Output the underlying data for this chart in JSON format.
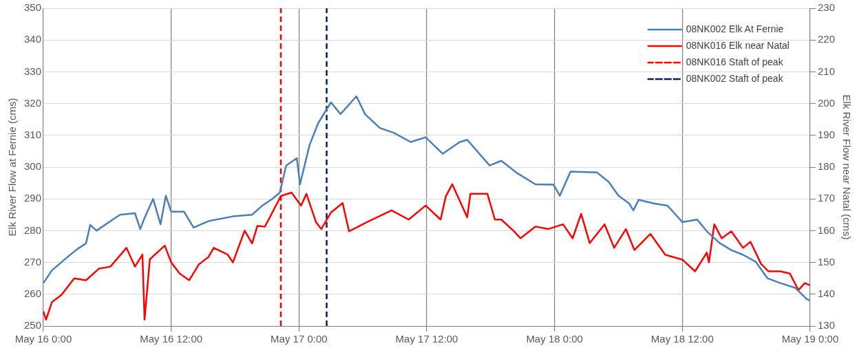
{
  "chart_data": {
    "type": "line",
    "ylabel": "Elk River Flow at Fernie (cms)",
    "y2label": "Elk River Flow near Natal (cms)",
    "xlim": [
      "--05-16T00:00",
      "--05-19T00:00"
    ],
    "xticks": [
      {
        "value": "--05-16T00:00",
        "label": "May 16 0:00"
      },
      {
        "value": "--05-16T12:00",
        "label": "May 16 12:00"
      },
      {
        "value": "--05-17T00:00",
        "label": "May 17 0:00"
      },
      {
        "value": "--05-17T12:00",
        "label": "May 17 12:00"
      },
      {
        "value": "--05-18T00:00",
        "label": "May 18 0:00"
      },
      {
        "value": "--05-18T12:00",
        "label": "May 18 12:00"
      },
      {
        "value": "--05-19T00:00",
        "label": "May 19 0:00"
      }
    ],
    "ylim": [
      250,
      350
    ],
    "yticks": [
      250,
      260,
      270,
      280,
      290,
      300,
      310,
      320,
      330,
      340,
      350
    ],
    "y2lim": [
      130,
      230
    ],
    "y2ticks": [
      130,
      140,
      150,
      160,
      170,
      180,
      190,
      200,
      210,
      220,
      230
    ],
    "grid": true,
    "legend": "top right",
    "marker": "none",
    "line_style": "solid",
    "series": [
      {
        "name": "08NK002 Elk At Fernie",
        "color": "#4a7ebb",
        "x": [
          "--05-16T00:00",
          "--05-16T00:48",
          "--05-16T02:12",
          "--05-16T03:06",
          "--05-16T04:00",
          "--05-16T04:24",
          "--05-16T05:00",
          "--05-16T06:18",
          "--05-16T07:12",
          "--05-16T08:36",
          "--05-16T09:06",
          "--05-16T09:30",
          "--05-16T10:18",
          "--05-16T11:00",
          "--05-16T11:30",
          "--05-16T12:00",
          "--05-16T13:12",
          "--05-16T14:06",
          "--05-16T15:30",
          "--05-16T17:48",
          "--05-16T19:36",
          "--05-16T20:36",
          "--05-16T21:30",
          "--05-16T22:12",
          "--05-16T22:48",
          "--05-16T23:48",
          "--05-17T00:06",
          "--05-17T01:00",
          "--05-17T01:48",
          "--05-17T03:00",
          "--05-17T03:54",
          "--05-17T05:24",
          "--05-17T06:12",
          "--05-17T07:36",
          "--05-17T08:54",
          "--05-17T10:30",
          "--05-17T11:54",
          "--05-17T13:30",
          "--05-17T15:06",
          "--05-17T15:48",
          "--05-17T17:54",
          "--05-17T19:00",
          "--05-17T20:24",
          "--05-17T22:12",
          "--05-17T23:54",
          "--05-18T00:30",
          "--05-18T01:30",
          "--05-18T04:00",
          "--05-18T05:06",
          "--05-18T06:00",
          "--05-18T07:00",
          "--05-18T07:24",
          "--05-18T07:54",
          "--05-18T09:18",
          "--05-18T10:36",
          "--05-18T11:36",
          "--05-18T12:00",
          "--05-18T13:24",
          "--05-18T14:18",
          "--05-18T15:30",
          "--05-18T16:36",
          "--05-18T17:42",
          "--05-18T18:54",
          "--05-18T20:00",
          "--05-18T21:12",
          "--05-18T22:36",
          "--05-18T23:42",
          "--05-19T00:00"
        ],
        "values": [
          263.5,
          267.5,
          271.5,
          274,
          276,
          281.8,
          280,
          283,
          285,
          285.5,
          280.5,
          284,
          290,
          282,
          291,
          286,
          286,
          281,
          283,
          284.5,
          285,
          288,
          290,
          292,
          300.5,
          302.8,
          294.6,
          307,
          313.8,
          320.4,
          316.7,
          322.3,
          316.7,
          312.3,
          310.8,
          307.9,
          309.4,
          304.2,
          307.9,
          308.6,
          300.5,
          302,
          298.3,
          294.6,
          294.5,
          291,
          298.6,
          298.3,
          295.3,
          291,
          288.6,
          286.4,
          289.7,
          288.6,
          287.9,
          284.2,
          282.7,
          283.5,
          279.8,
          276.1,
          273.9,
          272.4,
          270.2,
          265,
          263.5,
          262,
          258.4,
          258
        ]
      },
      {
        "name": "08NK016 Elk near Natal",
        "color": "#ff0000",
        "axis": "y2",
        "x": [
          "--05-16T00:00",
          "--05-16T00:15",
          "--05-16T00:48",
          "--05-16T01:42",
          "--05-16T02:54",
          "--05-16T04:00",
          "--05-16T05:12",
          "--05-16T06:18",
          "--05-16T07:48",
          "--05-16T08:36",
          "--05-16T09:18",
          "--05-16T09:30",
          "--05-16T10:00",
          "--05-16T11:24",
          "--05-16T12:00",
          "--05-16T12:48",
          "--05-16T13:42",
          "--05-16T14:36",
          "--05-16T15:30",
          "--05-16T16:00",
          "--05-16T17:18",
          "--05-16T17:48",
          "--05-16T18:54",
          "--05-16T19:36",
          "--05-16T20:06",
          "--05-16T20:48",
          "--05-16T21:12",
          "--05-16T22:18",
          "--05-16T23:18",
          "--05-17T00:12",
          "--05-17T00:42",
          "--05-17T01:36",
          "--05-17T02:06",
          "--05-17T03:00",
          "--05-17T04:06",
          "--05-17T04:42",
          "--05-17T06:24",
          "--05-17T08:42",
          "--05-17T10:18",
          "--05-17T11:54",
          "--05-17T13:18",
          "--05-17T13:48",
          "--05-17T14:24",
          "--05-17T15:48",
          "--05-17T16:06",
          "--05-17T17:42",
          "--05-17T18:24",
          "--05-17T19:00",
          "--05-17T20:12",
          "--05-17T20:48",
          "--05-17T22:12",
          "--05-17T23:24",
          "--05-18T00:48",
          "--05-18T01:42",
          "--05-18T02:30",
          "--05-18T03:18",
          "--05-18T04:42",
          "--05-18T05:36",
          "--05-18T06:42",
          "--05-18T07:30",
          "--05-18T09:00",
          "--05-18T10:24",
          "--05-18T12:00",
          "--05-18T13:12",
          "--05-18T14:18",
          "--05-18T14:30",
          "--05-18T15:00",
          "--05-18T15:42",
          "--05-18T16:36",
          "--05-18T17:42",
          "--05-18T18:24",
          "--05-18T19:24",
          "--05-18T20:06",
          "--05-18T21:12",
          "--05-18T22:06",
          "--05-18T22:54",
          "--05-18T23:30",
          "--05-19T00:00"
        ],
        "values": [
          134.6,
          132,
          137.5,
          139.8,
          145,
          144.4,
          148,
          148.7,
          154.6,
          148.7,
          152.5,
          132,
          151,
          155.3,
          150,
          146.5,
          144.4,
          149.4,
          151.7,
          154.6,
          152.5,
          150,
          160,
          156,
          161.5,
          161.3,
          163.8,
          170.9,
          172,
          167.9,
          171.6,
          162.7,
          160.5,
          165.7,
          168.7,
          159.8,
          162.7,
          166.4,
          163.5,
          167.9,
          163.5,
          170.9,
          174.6,
          164.2,
          171.6,
          171.6,
          163.5,
          163.5,
          159.8,
          157.6,
          161.3,
          160.5,
          162,
          157.6,
          165.3,
          156.1,
          162,
          154.6,
          160.5,
          153.9,
          159,
          152.4,
          150.9,
          147.2,
          153.1,
          150,
          162,
          157.6,
          159.8,
          154.6,
          156.5,
          149.5,
          147.2,
          147.2,
          146.5,
          141.3,
          143.5,
          142.8
        ]
      },
      {
        "name": "08NK016 Staft of peak",
        "color": "#ff0000",
        "line_style": "dashed",
        "x": [
          "--05-16T22:18",
          "--05-16T22:18"
        ],
        "values": [
          250,
          350
        ]
      },
      {
        "name": "08NK002 Staft of peak",
        "color": "#002060",
        "line_style": "dashed",
        "x": [
          "--05-17T02:36",
          "--05-17T02:36"
        ],
        "values": [
          250,
          350
        ]
      }
    ]
  }
}
